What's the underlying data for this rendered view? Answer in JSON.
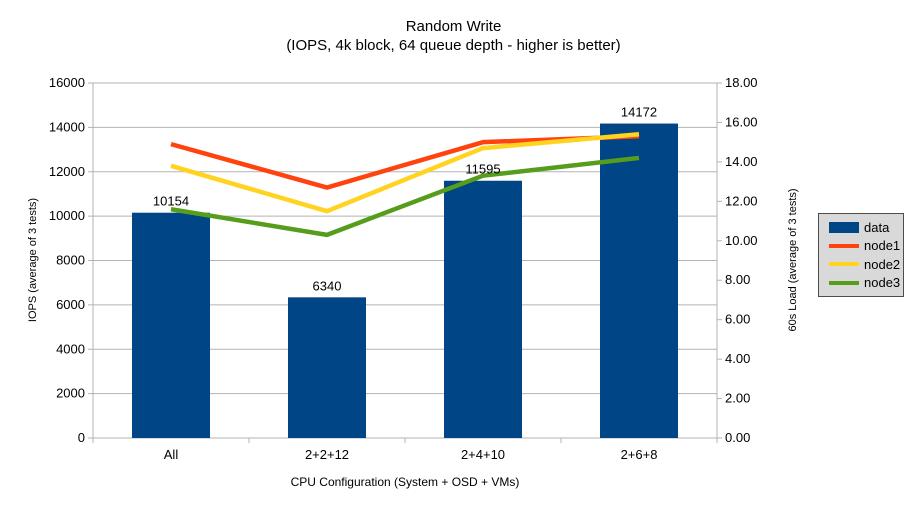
{
  "title": {
    "line1": "Random Write",
    "line2": "(IOPS, 4k block, 64 queue depth - higher is better)"
  },
  "axes": {
    "x_title": "CPU Configuration (System + OSD + VMs)",
    "y_left_title": "IOPS (average of 3 tests)",
    "y_right_title": "60s Load (average of 3 tests)"
  },
  "chart_data": {
    "type": "bar+line",
    "categories": [
      "All",
      "2+2+12",
      "2+4+10",
      "2+6+8"
    ],
    "series": [
      {
        "name": "data",
        "type": "bar",
        "axis": "left",
        "color": "#004586",
        "values": [
          10154,
          6340,
          11595,
          14172
        ],
        "data_labels": [
          "10154",
          "6340",
          "11595",
          "14172"
        ]
      },
      {
        "name": "node1",
        "type": "line",
        "axis": "right",
        "color": "#ff420e",
        "values": [
          14.9,
          12.7,
          15.0,
          15.3
        ]
      },
      {
        "name": "node2",
        "type": "line",
        "axis": "right",
        "color": "#ffd320",
        "values": [
          13.8,
          11.5,
          14.7,
          15.4
        ]
      },
      {
        "name": "node3",
        "type": "line",
        "axis": "right",
        "color": "#579d1c",
        "values": [
          11.6,
          10.3,
          13.3,
          14.2
        ]
      }
    ],
    "y_left": {
      "min": 0,
      "max": 16000,
      "step": 2000,
      "tick_labels": [
        "0",
        "2000",
        "4000",
        "6000",
        "8000",
        "10000",
        "12000",
        "14000",
        "16000"
      ]
    },
    "y_right": {
      "min": 0,
      "max": 18,
      "step": 2,
      "tick_labels": [
        "0.00",
        "2.00",
        "4.00",
        "6.00",
        "8.00",
        "10.00",
        "12.00",
        "14.00",
        "16.00",
        "18.00"
      ]
    },
    "grid": "horizontal",
    "legend_position": "right"
  },
  "legend": {
    "items": [
      {
        "label": "data",
        "color": "#004586",
        "swatch": "box"
      },
      {
        "label": "node1",
        "color": "#ff420e",
        "swatch": "line"
      },
      {
        "label": "node2",
        "color": "#ffd320",
        "swatch": "line"
      },
      {
        "label": "node3",
        "color": "#579d1c",
        "swatch": "line"
      }
    ]
  },
  "colors": {
    "background": "#ffffff",
    "grid": "#b3b3b3",
    "axis": "#b3b3b3",
    "text": "#000000",
    "legend_background": "#d9d9d9",
    "legend_border": "#4d4d4d"
  }
}
